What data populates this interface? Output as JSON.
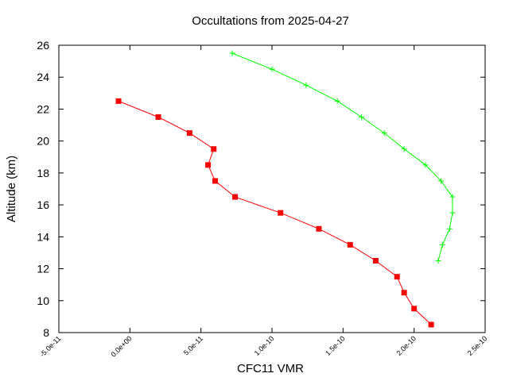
{
  "chart_data": {
    "type": "line",
    "title": "Occultations from 2025-04-27",
    "xlabel": "CFC11 VMR",
    "ylabel": "Altitude (km)",
    "xlim": [
      -5e-11,
      2.5e-10
    ],
    "ylim": [
      8,
      26
    ],
    "x_ticks": [
      -5e-11,
      0,
      5e-11,
      1e-10,
      1.5e-10,
      2e-10,
      2.5e-10
    ],
    "x_tick_labels": [
      "-5.0e-11",
      "0.0e+00",
      "5.0e-11",
      "1.0e-10",
      "1.5e-10",
      "2.0e-10",
      "2.5e-10"
    ],
    "y_ticks": [
      8,
      10,
      12,
      14,
      16,
      18,
      20,
      22,
      24,
      26
    ],
    "y_tick_labels": [
      "8",
      "10",
      "12",
      "14",
      "16",
      "18",
      "20",
      "22",
      "24",
      "26"
    ],
    "grid": false,
    "legend": "none",
    "series": [
      {
        "color": "#ff0000",
        "marker": "square",
        "points": [
          {
            "x": -8e-12,
            "y": 22.5
          },
          {
            "x": 2e-11,
            "y": 21.5
          },
          {
            "x": 4.2e-11,
            "y": 20.5
          },
          {
            "x": 5.9e-11,
            "y": 19.5
          },
          {
            "x": 5.5e-11,
            "y": 18.5
          },
          {
            "x": 6e-11,
            "y": 17.5
          },
          {
            "x": 7.4e-11,
            "y": 16.5
          },
          {
            "x": 1.06e-10,
            "y": 15.5
          },
          {
            "x": 1.33e-10,
            "y": 14.5
          },
          {
            "x": 1.55e-10,
            "y": 13.5
          },
          {
            "x": 1.73e-10,
            "y": 12.5
          },
          {
            "x": 1.88e-10,
            "y": 11.5
          },
          {
            "x": 1.93e-10,
            "y": 10.5
          },
          {
            "x": 2e-10,
            "y": 9.5
          },
          {
            "x": 2.12e-10,
            "y": 8.5
          }
        ]
      },
      {
        "color": "#00ff00",
        "marker": "plus",
        "points": [
          {
            "x": 7.2e-11,
            "y": 25.5
          },
          {
            "x": 1e-10,
            "y": 24.5
          },
          {
            "x": 1.24e-10,
            "y": 23.5
          },
          {
            "x": 1.46e-10,
            "y": 22.5
          },
          {
            "x": 1.63e-10,
            "y": 21.5
          },
          {
            "x": 1.79e-10,
            "y": 20.5
          },
          {
            "x": 1.93e-10,
            "y": 19.5
          },
          {
            "x": 2.08e-10,
            "y": 18.5
          },
          {
            "x": 2.19e-10,
            "y": 17.5
          },
          {
            "x": 2.27e-10,
            "y": 16.5
          },
          {
            "x": 2.27e-10,
            "y": 15.5
          },
          {
            "x": 2.25e-10,
            "y": 14.5
          },
          {
            "x": 2.2e-10,
            "y": 13.5
          },
          {
            "x": 2.17e-10,
            "y": 12.5
          }
        ]
      }
    ]
  }
}
